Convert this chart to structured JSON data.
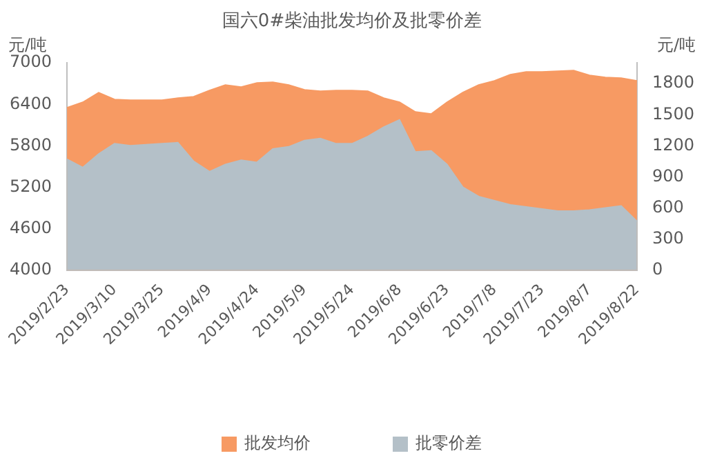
{
  "chart_data": {
    "type": "area",
    "title": "国六0#柴油批发均价及批零价差",
    "ylabel": "元/吨",
    "y2label": "元/吨",
    "categories": [
      "2019/2/23",
      null,
      null,
      "2019/3/10",
      null,
      null,
      "2019/3/25",
      null,
      null,
      "2019/4/9",
      null,
      null,
      "2019/4/24",
      null,
      null,
      "2019/5/9",
      null,
      null,
      "2019/5/24",
      null,
      null,
      "2019/6/8",
      null,
      null,
      "2019/6/23",
      null,
      null,
      "2019/7/8",
      null,
      null,
      "2019/7/23",
      null,
      null,
      "2019/8/7",
      null,
      null,
      "2019/8/22"
    ],
    "series": [
      {
        "name": "批发均价",
        "color": "#f79a63",
        "values": [
          6350,
          6430,
          6570,
          6470,
          6460,
          6460,
          6460,
          6490,
          6510,
          6600,
          6680,
          6650,
          6710,
          6720,
          6680,
          6610,
          6590,
          6600,
          6600,
          6590,
          6490,
          6430,
          6290,
          6260,
          6430,
          6570,
          6680,
          6740,
          6830,
          6870,
          6870,
          6880,
          6890,
          6820,
          6790,
          6780,
          6740
        ]
      },
      {
        "name": "批零价差",
        "axis": "y2",
        "color": "#b4c0c8",
        "values": [
          1070,
          990,
          1120,
          1220,
          1200,
          1210,
          1220,
          1230,
          1050,
          950,
          1020,
          1060,
          1040,
          1170,
          1190,
          1250,
          1270,
          1220,
          1220,
          1290,
          1380,
          1450,
          1140,
          1150,
          1020,
          800,
          710,
          670,
          630,
          610,
          590,
          570,
          570,
          580,
          600,
          620,
          470
        ]
      }
    ],
    "ylim": [
      4000,
      7000
    ],
    "yticks": [
      4000,
      4600,
      5200,
      5800,
      6400,
      7000
    ],
    "y2lim": [
      0,
      2000
    ],
    "y2ticks": [
      0,
      300,
      600,
      900,
      1200,
      1500,
      1800
    ],
    "grid": false,
    "legend": "bottom"
  }
}
